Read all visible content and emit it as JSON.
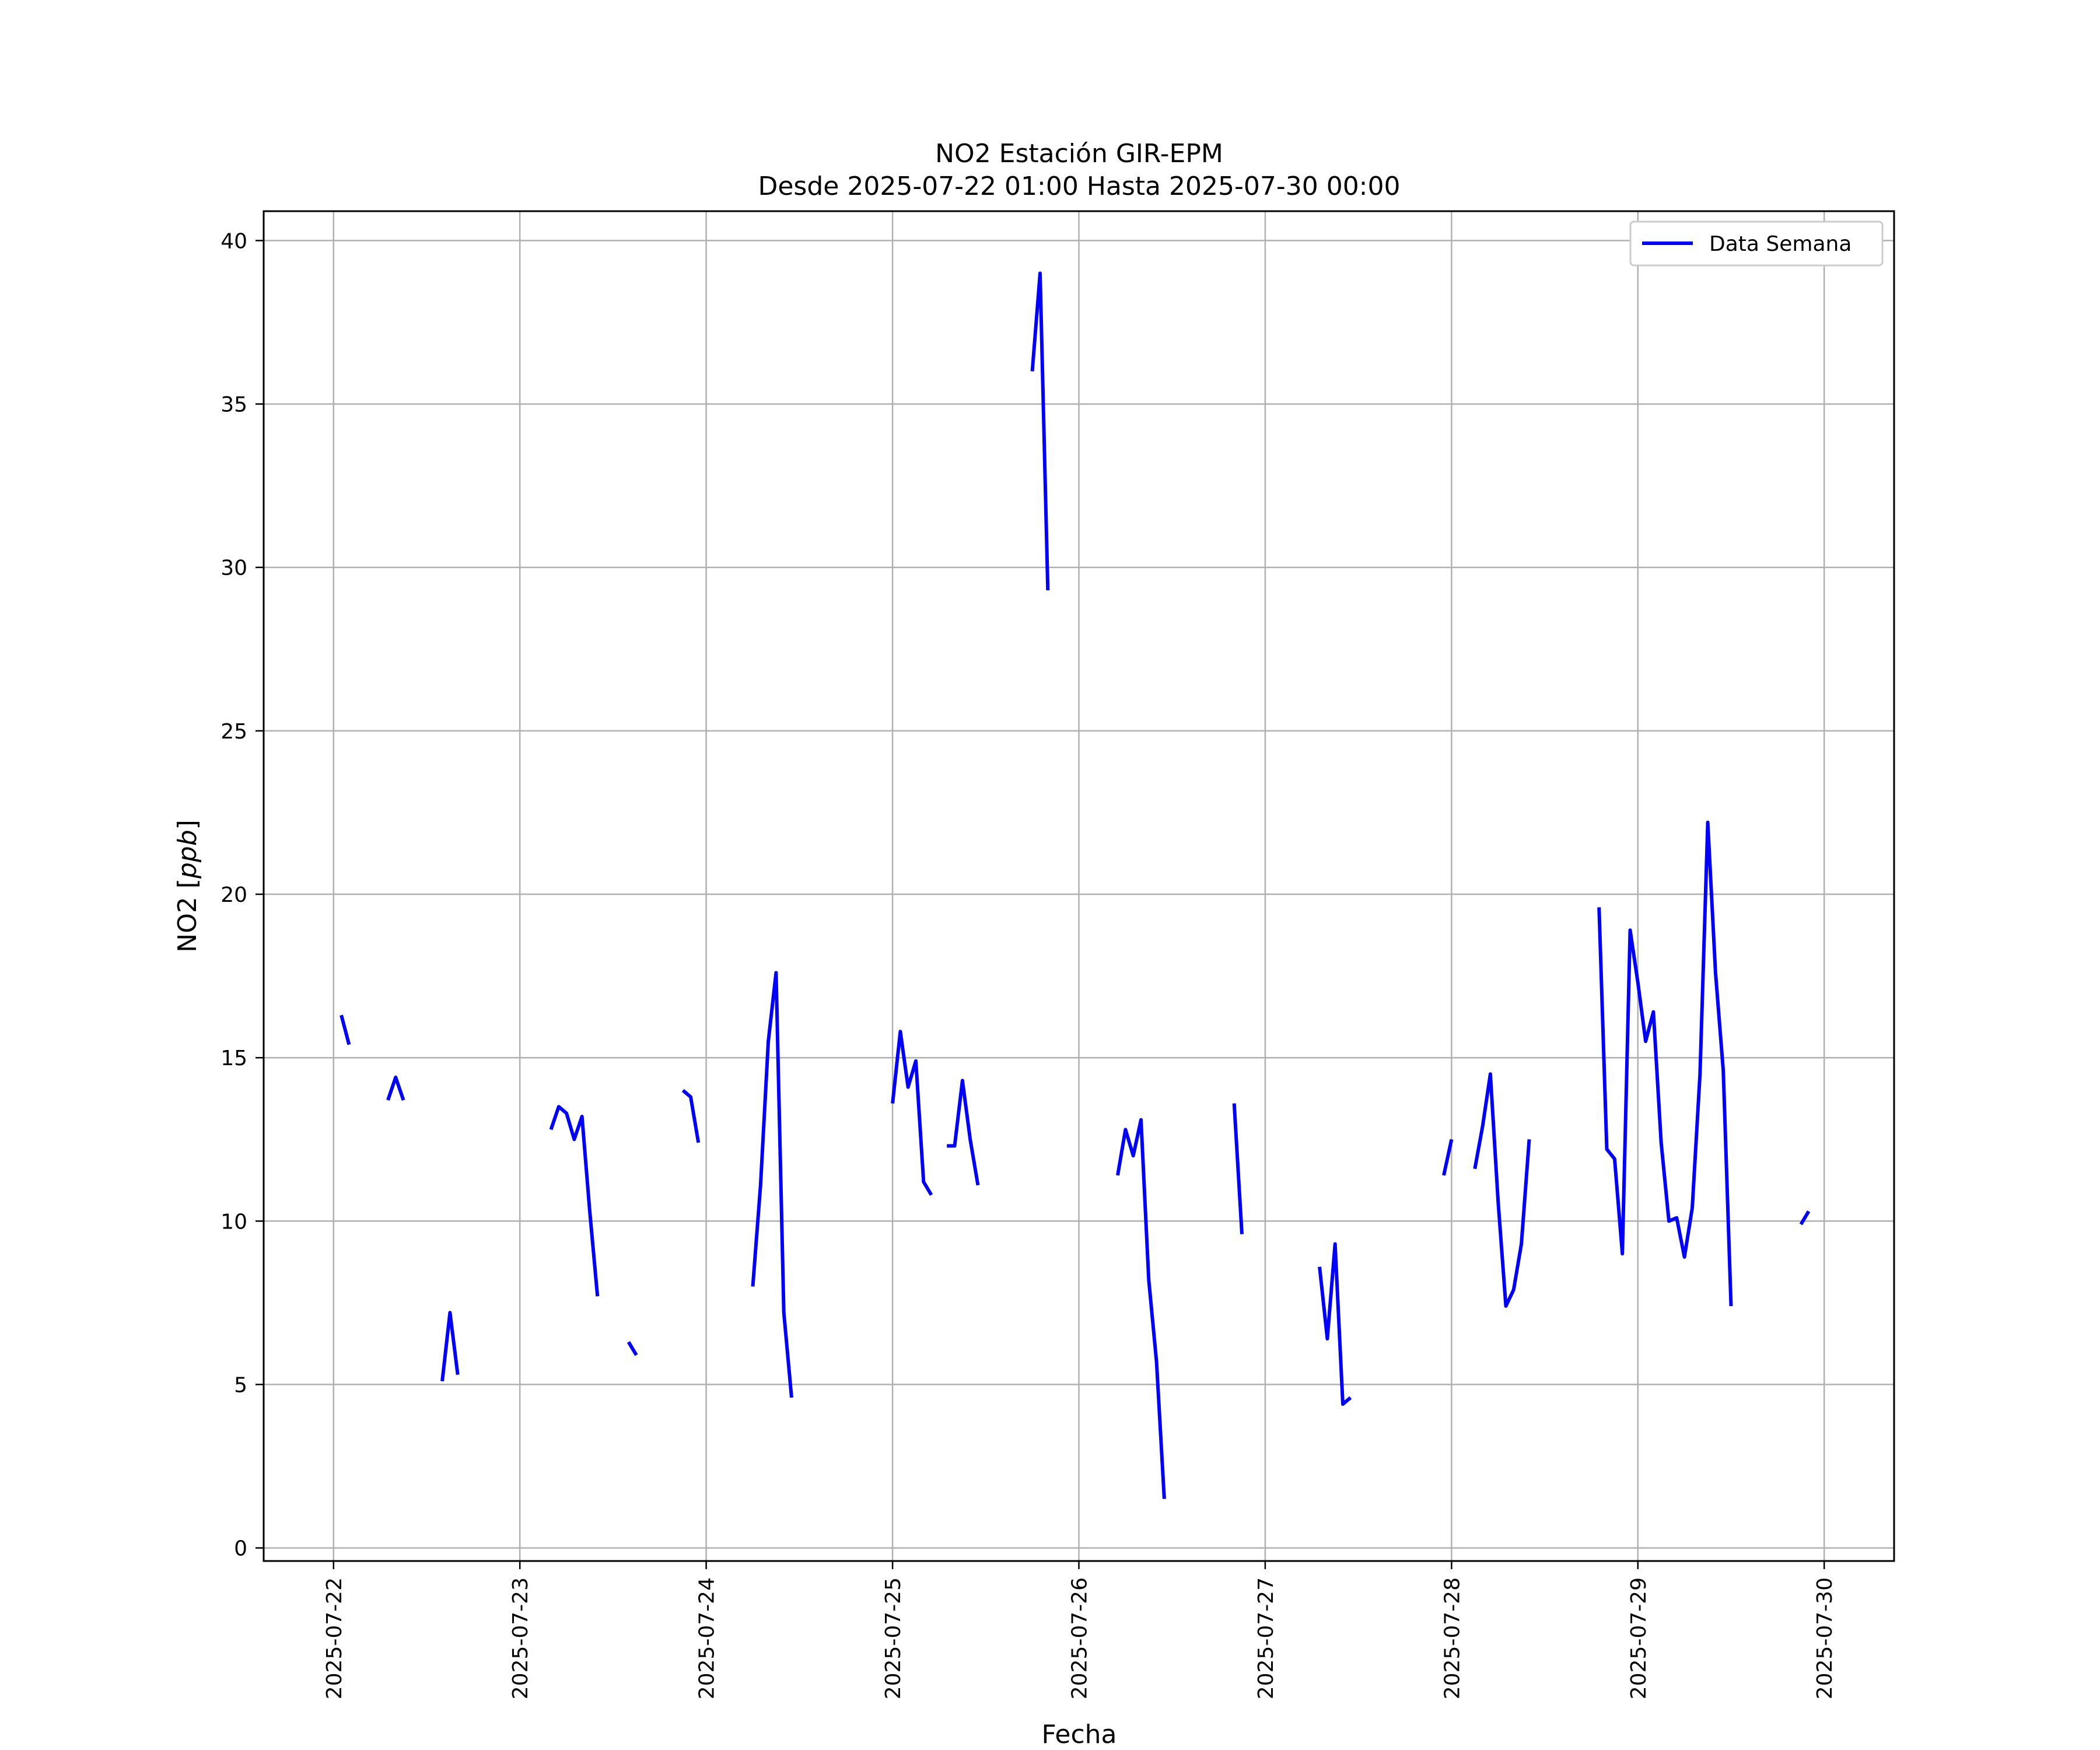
{
  "chart_data": {
    "type": "line",
    "title": "NO2 Estación GIR-EPM",
    "subtitle": "Desde 2025-07-22 01:00 Hasta 2025-07-30 00:00",
    "xlabel": "Fecha",
    "ylabel": "NO2 [ppb]",
    "ylabel_main": "NO2 [",
    "ylabel_unit": "ppb",
    "ylabel_close": "]",
    "x_ticks": [
      "2025-07-22",
      "2025-07-23",
      "2025-07-24",
      "2025-07-25",
      "2025-07-26",
      "2025-07-27",
      "2025-07-28",
      "2025-07-29",
      "2025-07-30"
    ],
    "y_ticks": [
      0,
      5,
      10,
      15,
      20,
      25,
      30,
      35,
      40
    ],
    "y_tick_labels": [
      "0",
      "5",
      "10",
      "15",
      "20",
      "25",
      "30",
      "35",
      "40"
    ],
    "xlim": [
      "2025-07-21 15:00",
      "2025-07-30 09:00"
    ],
    "ylim": [
      -0.4,
      40.9
    ],
    "grid": true,
    "legend_position": "top-right",
    "series_color": "#0000ff",
    "series": [
      {
        "name": "Data Semana",
        "segments": [
          [
            [
              "2025-07-22 01:00",
              16.3
            ],
            [
              "2025-07-22 02:00",
              15.4
            ]
          ],
          [
            [
              "2025-07-22 07:00",
              13.7
            ],
            [
              "2025-07-22 08:00",
              14.4
            ],
            [
              "2025-07-22 09:00",
              13.7
            ]
          ],
          [
            [
              "2025-07-22 14:00",
              5.1
            ],
            [
              "2025-07-22 15:00",
              7.2
            ],
            [
              "2025-07-22 16:00",
              5.3
            ]
          ],
          [
            [
              "2025-07-23 04:00",
              12.8
            ],
            [
              "2025-07-23 05:00",
              13.5
            ],
            [
              "2025-07-23 06:00",
              13.3
            ],
            [
              "2025-07-23 07:00",
              12.5
            ],
            [
              "2025-07-23 08:00",
              13.2
            ],
            [
              "2025-07-23 09:00",
              10.3
            ],
            [
              "2025-07-23 10:00",
              7.7
            ]
          ],
          [
            [
              "2025-07-23 14:00",
              6.3
            ],
            [
              "2025-07-23 15:00",
              5.9
            ]
          ],
          [
            [
              "2025-07-23 21:00",
              14.0
            ],
            [
              "2025-07-23 22:00",
              13.8
            ],
            [
              "2025-07-23 23:00",
              12.4
            ]
          ],
          [
            [
              "2025-07-24 06:00",
              8.0
            ],
            [
              "2025-07-24 07:00",
              11.1
            ],
            [
              "2025-07-24 08:00",
              15.5
            ],
            [
              "2025-07-24 09:00",
              17.6
            ],
            [
              "2025-07-24 10:00",
              7.2
            ],
            [
              "2025-07-24 11:00",
              4.6
            ]
          ],
          [
            [
              "2025-07-25 00:00",
              13.6
            ],
            [
              "2025-07-25 01:00",
              15.8
            ],
            [
              "2025-07-25 02:00",
              14.1
            ],
            [
              "2025-07-25 03:00",
              14.9
            ],
            [
              "2025-07-25 04:00",
              11.2
            ],
            [
              "2025-07-25 05:00",
              10.8
            ]
          ],
          [
            [
              "2025-07-25 07:00",
              12.3
            ],
            [
              "2025-07-25 08:00",
              12.3
            ],
            [
              "2025-07-25 09:00",
              14.3
            ],
            [
              "2025-07-25 10:00",
              12.5
            ],
            [
              "2025-07-25 11:00",
              11.1
            ]
          ],
          [
            [
              "2025-07-25 18:00",
              36.0
            ],
            [
              "2025-07-25 19:00",
              39.0
            ],
            [
              "2025-07-25 20:00",
              29.3
            ]
          ],
          [
            [
              "2025-07-26 05:00",
              11.4
            ],
            [
              "2025-07-26 06:00",
              12.8
            ],
            [
              "2025-07-26 07:00",
              12.0
            ],
            [
              "2025-07-26 08:00",
              13.1
            ],
            [
              "2025-07-26 09:00",
              8.2
            ],
            [
              "2025-07-26 10:00",
              5.7
            ],
            [
              "2025-07-26 11:00",
              1.5
            ]
          ],
          [
            [
              "2025-07-26 20:00",
              13.6
            ],
            [
              "2025-07-26 21:00",
              9.6
            ]
          ],
          [
            [
              "2025-07-27 07:00",
              8.6
            ],
            [
              "2025-07-27 08:00",
              6.4
            ],
            [
              "2025-07-27 09:00",
              9.3
            ],
            [
              "2025-07-27 10:00",
              4.4
            ],
            [
              "2025-07-27 11:00",
              4.6
            ]
          ],
          [
            [
              "2025-07-27 23:00",
              11.4
            ],
            [
              "2025-07-28 00:00",
              12.5
            ]
          ],
          [
            [
              "2025-07-28 03:00",
              11.6
            ],
            [
              "2025-07-28 04:00",
              12.9
            ],
            [
              "2025-07-28 05:00",
              14.5
            ],
            [
              "2025-07-28 06:00",
              10.6
            ],
            [
              "2025-07-28 07:00",
              7.4
            ],
            [
              "2025-07-28 08:00",
              7.9
            ],
            [
              "2025-07-28 09:00",
              9.3
            ],
            [
              "2025-07-28 10:00",
              12.5
            ]
          ],
          [
            [
              "2025-07-28 19:00",
              19.6
            ],
            [
              "2025-07-28 20:00",
              12.2
            ],
            [
              "2025-07-28 21:00",
              11.9
            ],
            [
              "2025-07-28 22:00",
              9.0
            ],
            [
              "2025-07-28 23:00",
              18.9
            ],
            [
              "2025-07-29 00:00",
              17.3
            ],
            [
              "2025-07-29 01:00",
              15.5
            ],
            [
              "2025-07-29 02:00",
              16.4
            ],
            [
              "2025-07-29 03:00",
              12.4
            ],
            [
              "2025-07-29 04:00",
              10.0
            ],
            [
              "2025-07-29 05:00",
              10.1
            ],
            [
              "2025-07-29 06:00",
              8.9
            ],
            [
              "2025-07-29 07:00",
              10.4
            ],
            [
              "2025-07-29 08:00",
              14.5
            ],
            [
              "2025-07-29 09:00",
              22.2
            ],
            [
              "2025-07-29 10:00",
              17.6
            ],
            [
              "2025-07-29 11:00",
              14.6
            ],
            [
              "2025-07-29 12:00",
              7.4
            ]
          ],
          [
            [
              "2025-07-29 21:00",
              9.9
            ],
            [
              "2025-07-29 22:00",
              10.3
            ]
          ]
        ]
      }
    ]
  }
}
